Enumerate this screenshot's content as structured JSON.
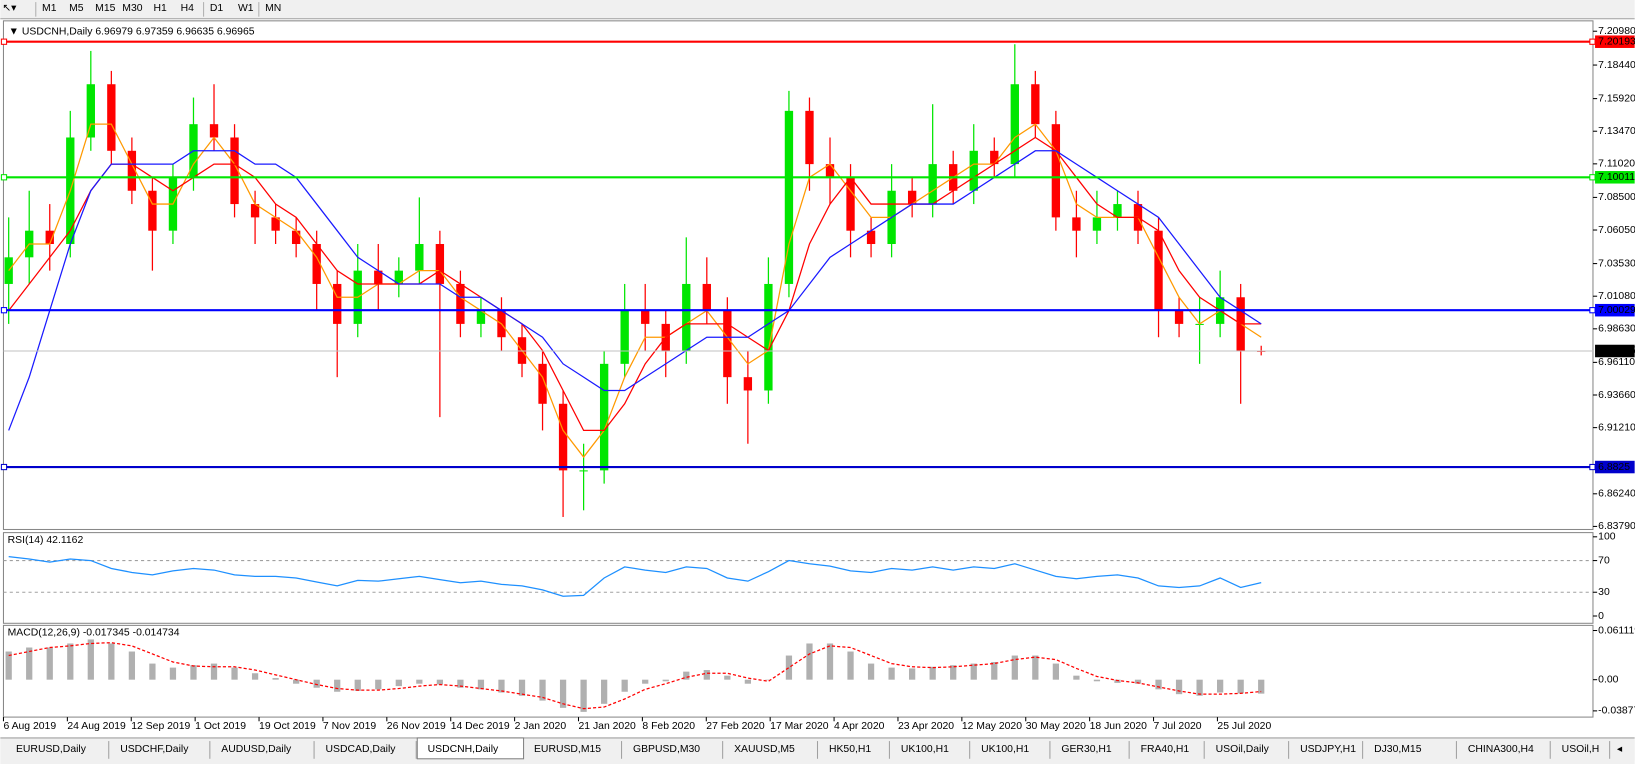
{
  "toolbar": {
    "buttons": [
      "M1",
      "M5",
      "M15",
      "M30",
      "H1",
      "H4",
      "D1",
      "W1",
      "MN"
    ]
  },
  "chart_data": {
    "type": "candlestick",
    "symbol": "USDCNH,Daily",
    "series": [
      {
        "name": "USDCNH",
        "colors": {
          "up": "#00e600",
          "down": "#ff0000"
        },
        "values": [
          [
            7.02,
            7.07,
            6.99,
            7.04
          ],
          [
            7.04,
            7.09,
            7.02,
            7.06
          ],
          [
            7.06,
            7.08,
            7.03,
            7.05
          ],
          [
            7.05,
            7.15,
            7.04,
            7.13
          ],
          [
            7.13,
            7.195,
            7.12,
            7.17
          ],
          [
            7.17,
            7.18,
            7.11,
            7.12
          ],
          [
            7.12,
            7.13,
            7.08,
            7.09
          ],
          [
            7.09,
            7.1,
            7.03,
            7.06
          ],
          [
            7.06,
            7.11,
            7.05,
            7.1
          ],
          [
            7.1,
            7.16,
            7.09,
            7.14
          ],
          [
            7.14,
            7.17,
            7.12,
            7.13
          ],
          [
            7.13,
            7.14,
            7.07,
            7.08
          ],
          [
            7.08,
            7.09,
            7.05,
            7.07
          ],
          [
            7.07,
            7.08,
            7.05,
            7.06
          ],
          [
            7.06,
            7.07,
            7.04,
            7.05
          ],
          [
            7.05,
            7.06,
            7.0,
            7.02
          ],
          [
            7.02,
            7.03,
            6.95,
            6.99
          ],
          [
            6.99,
            7.05,
            6.98,
            7.03
          ],
          [
            7.03,
            7.05,
            7.0,
            7.02
          ],
          [
            7.02,
            7.04,
            7.01,
            7.03
          ],
          [
            7.03,
            7.085,
            7.02,
            7.05
          ],
          [
            7.05,
            7.06,
            6.92,
            7.02
          ],
          [
            7.02,
            7.03,
            6.98,
            6.99
          ],
          [
            6.99,
            7.01,
            6.98,
            7.0
          ],
          [
            7.0,
            7.01,
            6.97,
            6.98
          ],
          [
            6.98,
            6.99,
            6.95,
            6.96
          ],
          [
            6.96,
            6.97,
            6.91,
            6.93
          ],
          [
            6.93,
            6.94,
            6.845,
            6.88
          ],
          [
            6.88,
            6.9,
            6.85,
            6.88
          ],
          [
            6.88,
            6.97,
            6.87,
            6.96
          ],
          [
            6.96,
            7.02,
            6.95,
            7.0
          ],
          [
            7.0,
            7.02,
            6.97,
            6.99
          ],
          [
            6.99,
            7.0,
            6.95,
            6.97
          ],
          [
            6.97,
            7.055,
            6.96,
            7.02
          ],
          [
            7.02,
            7.04,
            6.99,
            7.0
          ],
          [
            7.0,
            7.01,
            6.93,
            6.95
          ],
          [
            6.95,
            6.97,
            6.9,
            6.94
          ],
          [
            6.94,
            7.04,
            6.93,
            7.02
          ],
          [
            7.02,
            7.165,
            7.01,
            7.15
          ],
          [
            7.15,
            7.16,
            7.09,
            7.11
          ],
          [
            7.11,
            7.13,
            7.08,
            7.1
          ],
          [
            7.1,
            7.11,
            7.04,
            7.06
          ],
          [
            7.06,
            7.07,
            7.04,
            7.05
          ],
          [
            7.05,
            7.11,
            7.04,
            7.09
          ],
          [
            7.09,
            7.1,
            7.07,
            7.08
          ],
          [
            7.08,
            7.155,
            7.07,
            7.11
          ],
          [
            7.11,
            7.12,
            7.08,
            7.09
          ],
          [
            7.09,
            7.14,
            7.08,
            7.12
          ],
          [
            7.12,
            7.13,
            7.1,
            7.11
          ],
          [
            7.11,
            7.2,
            7.1,
            7.17
          ],
          [
            7.17,
            7.18,
            7.13,
            7.14
          ],
          [
            7.14,
            7.15,
            7.06,
            7.07
          ],
          [
            7.07,
            7.09,
            7.04,
            7.06
          ],
          [
            7.06,
            7.09,
            7.05,
            7.07
          ],
          [
            7.07,
            7.09,
            7.06,
            7.08
          ],
          [
            7.08,
            7.09,
            7.05,
            7.06
          ],
          [
            7.06,
            7.07,
            6.98,
            7.0
          ],
          [
            7.0,
            7.01,
            6.98,
            6.99
          ],
          [
            6.99,
            7.01,
            6.96,
            6.99
          ],
          [
            6.99,
            7.03,
            6.98,
            7.01
          ],
          [
            7.01,
            7.02,
            6.93,
            6.97
          ],
          [
            6.96979,
            6.97359,
            6.96635,
            6.96965
          ]
        ]
      },
      {
        "name": "MA fast",
        "color": "#ff9900",
        "values": [
          7.03,
          7.05,
          7.05,
          7.09,
          7.14,
          7.14,
          7.11,
          7.08,
          7.08,
          7.11,
          7.13,
          7.11,
          7.08,
          7.07,
          7.06,
          7.04,
          7.01,
          7.01,
          7.02,
          7.02,
          7.03,
          7.03,
          7.01,
          7.0,
          6.99,
          6.97,
          6.95,
          6.91,
          6.89,
          6.91,
          6.95,
          6.98,
          6.98,
          6.99,
          7.0,
          6.98,
          6.96,
          6.97,
          7.05,
          7.1,
          7.11,
          7.09,
          7.07,
          7.07,
          7.08,
          7.09,
          7.1,
          7.11,
          7.11,
          7.13,
          7.14,
          7.12,
          7.08,
          7.07,
          7.07,
          7.07,
          7.04,
          7.01,
          6.99,
          7.0,
          6.99,
          6.98
        ]
      },
      {
        "name": "MA medium",
        "color": "#ff0000",
        "values": [
          7.0,
          7.02,
          7.04,
          7.06,
          7.09,
          7.11,
          7.11,
          7.1,
          7.09,
          7.1,
          7.11,
          7.11,
          7.1,
          7.08,
          7.07,
          7.05,
          7.03,
          7.02,
          7.02,
          7.02,
          7.02,
          7.03,
          7.02,
          7.01,
          7.0,
          6.99,
          6.97,
          6.94,
          6.91,
          6.91,
          6.93,
          6.96,
          6.98,
          6.99,
          6.99,
          6.99,
          6.98,
          6.97,
          7.0,
          7.05,
          7.08,
          7.1,
          7.08,
          7.08,
          7.08,
          7.08,
          7.09,
          7.1,
          7.11,
          7.12,
          7.13,
          7.12,
          7.1,
          7.08,
          7.07,
          7.07,
          7.06,
          7.03,
          7.01,
          7.0,
          6.99,
          6.99
        ]
      },
      {
        "name": "MA slow",
        "color": "#1a1aff",
        "values": [
          6.91,
          6.95,
          7.0,
          7.05,
          7.09,
          7.11,
          7.11,
          7.11,
          7.11,
          7.12,
          7.12,
          7.12,
          7.11,
          7.11,
          7.1,
          7.08,
          7.06,
          7.04,
          7.03,
          7.02,
          7.02,
          7.02,
          7.01,
          7.01,
          7.0,
          6.99,
          6.98,
          6.96,
          6.95,
          6.94,
          6.94,
          6.95,
          6.96,
          6.97,
          6.98,
          6.98,
          6.98,
          6.99,
          7.0,
          7.02,
          7.04,
          7.05,
          7.06,
          7.07,
          7.08,
          7.08,
          7.08,
          7.09,
          7.1,
          7.11,
          7.12,
          7.12,
          7.11,
          7.1,
          7.09,
          7.08,
          7.07,
          7.05,
          7.03,
          7.01,
          7.0,
          6.99
        ]
      }
    ],
    "ylim": [
      6.8356,
      7.2176
    ],
    "yticks": [
      {
        "value": 7.2098,
        "label": "7.20980"
      },
      {
        "value": 7.1844,
        "label": "7.18440"
      },
      {
        "value": 7.1592,
        "label": "7.15920"
      },
      {
        "value": 7.1347,
        "label": "7.13470"
      },
      {
        "value": 7.1102,
        "label": "7.11020"
      },
      {
        "value": 7.085,
        "label": "7.08500"
      },
      {
        "value": 7.0605,
        "label": "7.06050"
      },
      {
        "value": 7.0353,
        "label": "7.03530"
      },
      {
        "value": 7.0108,
        "label": "7.01080"
      },
      {
        "value": 6.9863,
        "label": "6.98630"
      },
      {
        "value": 6.9611,
        "label": "6.96110"
      },
      {
        "value": 6.9366,
        "label": "6.93660"
      },
      {
        "value": 6.9121,
        "label": "6.91210"
      },
      {
        "value": 6.8624,
        "label": "6.86240"
      },
      {
        "value": 6.8379,
        "label": "6.83790"
      }
    ],
    "levels": [
      {
        "value": 7.20193,
        "color": "#ff0000"
      },
      {
        "value": 7.10011,
        "color": "#00e600"
      },
      {
        "value": 7.00029,
        "color": "#0000ff"
      },
      {
        "value": 6.8825,
        "color": "#0000cc"
      }
    ],
    "x_labels": [
      "6 Aug 2019",
      "24 Aug 2019",
      "12 Sep 2019",
      "1 Oct 2019",
      "19 Oct 2019",
      "7 Nov 2019",
      "26 Nov 2019",
      "14 Dec 2019",
      "2 Jan 2020",
      "21 Jan 2020",
      "8 Feb 2020",
      "27 Feb 2020",
      "17 Mar 2020",
      "4 Apr 2020",
      "23 Apr 2020",
      "12 May 2020",
      "30 May 2020",
      "18 Jun 2020",
      "7 Jul 2020",
      "25 Jul 2020"
    ],
    "rsi": {
      "name": "RSI(14)",
      "color": "#1e90ff",
      "ylim": [
        -9.2,
        105.3
      ],
      "yticks": [
        100,
        70,
        30,
        0
      ],
      "levels": [
        70,
        30
      ],
      "values": [
        75,
        72,
        68,
        72,
        70,
        60,
        55,
        52,
        57,
        60,
        58,
        52,
        50,
        50,
        48,
        43,
        38,
        45,
        44,
        47,
        50,
        46,
        42,
        44,
        40,
        38,
        33,
        25,
        26,
        48,
        62,
        58,
        55,
        62,
        60,
        48,
        44,
        56,
        70,
        66,
        63,
        57,
        55,
        60,
        58,
        62,
        58,
        62,
        60,
        66,
        58,
        50,
        47,
        50,
        52,
        48,
        38,
        36,
        38,
        48,
        36,
        42.1162
      ]
    },
    "macd": {
      "name": "MACD(12,26,9)",
      "hist_color": "#b0b0b0",
      "signal_color": "#ff0000",
      "ylim": [
        -0.0465,
        0.0675
      ],
      "yticks": [
        0.061119,
        {
          "value": 0,
          "label": "0.00"
        },
        -0.03877
      ],
      "hist": [
        0.035,
        0.04,
        0.04,
        0.045,
        0.05,
        0.045,
        0.035,
        0.02,
        0.015,
        0.018,
        0.02,
        0.015,
        0.008,
        0.002,
        -0.005,
        -0.01,
        -0.015,
        -0.014,
        -0.012,
        -0.008,
        -0.005,
        -0.006,
        -0.01,
        -0.012,
        -0.016,
        -0.02,
        -0.026,
        -0.035,
        -0.04,
        -0.03,
        -0.015,
        -0.005,
        -0.002,
        0.01,
        0.012,
        0.005,
        -0.005,
        0.0,
        0.03,
        0.045,
        0.045,
        0.035,
        0.02,
        0.015,
        0.014,
        0.016,
        0.018,
        0.02,
        0.022,
        0.03,
        0.03,
        0.02,
        0.005,
        -0.002,
        -0.004,
        -0.005,
        -0.012,
        -0.018,
        -0.02,
        -0.016,
        -0.017,
        -0.017345
      ],
      "signal": [
        0.03,
        0.035,
        0.04,
        0.042,
        0.045,
        0.046,
        0.042,
        0.032,
        0.022,
        0.017,
        0.016,
        0.016,
        0.012,
        0.006,
        0.0,
        -0.006,
        -0.011,
        -0.013,
        -0.013,
        -0.011,
        -0.008,
        -0.006,
        -0.008,
        -0.011,
        -0.014,
        -0.018,
        -0.022,
        -0.03,
        -0.036,
        -0.034,
        -0.024,
        -0.012,
        -0.005,
        0.003,
        0.008,
        0.008,
        0.002,
        -0.002,
        0.015,
        0.032,
        0.042,
        0.04,
        0.03,
        0.02,
        0.016,
        0.015,
        0.016,
        0.018,
        0.02,
        0.025,
        0.028,
        0.025,
        0.014,
        0.004,
        -0.001,
        -0.004,
        -0.009,
        -0.014,
        -0.018,
        -0.018,
        -0.017,
        -0.014734
      ]
    }
  },
  "tabs": {
    "active": 4,
    "items": [
      "EURUSD,Daily",
      "USDCHF,Daily",
      "AUDUSD,Daily",
      "USDCAD,Daily",
      "USDCNH,Daily",
      "EURUSD,M15",
      "GBPUSD,M30",
      "XAUUSD,M5",
      "HK50,H1",
      "UK100,H1",
      "UK100,H1",
      "GER30,H1",
      "FRA40,H1",
      "USOil,Daily",
      "USDJPY,H1",
      "DJ30,M15",
      "CHINA300,H4",
      "USOil,H"
    ]
  }
}
